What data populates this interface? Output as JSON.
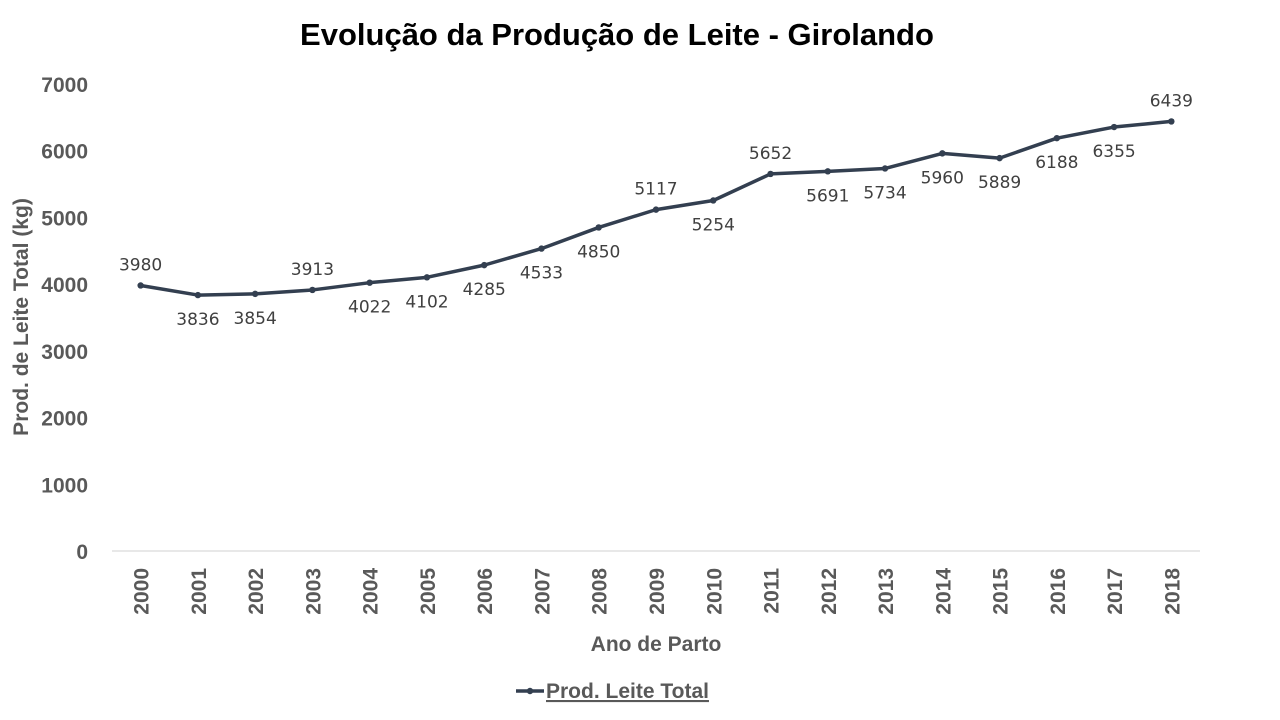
{
  "chart_data": {
    "type": "line",
    "title": "Evolução da Produção de Leite - Girolando",
    "xlabel": "Ano de Parto",
    "ylabel": "Prod. de Leite Total (kg)",
    "ylim": [
      0,
      7000
    ],
    "yticks": [
      "0",
      "1000",
      "2000",
      "3000",
      "4000",
      "5000",
      "6000",
      "7000"
    ],
    "categories": [
      "2000",
      "2001",
      "2002",
      "2003",
      "2004",
      "2005",
      "2006",
      "2007",
      "2008",
      "2009",
      "2010",
      "2011",
      "2012",
      "2013",
      "2014",
      "2015",
      "2016",
      "2017",
      "2018"
    ],
    "series": [
      {
        "name": "Prod. Leite Total",
        "color": "#333f50",
        "values": [
          3980,
          3836,
          3854,
          3913,
          4022,
          4102,
          4285,
          4533,
          4850,
          5117,
          5254,
          5652,
          5691,
          5734,
          5960,
          5889,
          6188,
          6355,
          6439
        ],
        "data_labels": [
          "3980",
          "3836",
          "3854",
          "3913",
          "4022",
          "4102",
          "4285",
          "4533",
          "4850",
          "5117",
          "5254",
          "5652",
          "5691",
          "5734",
          "5960",
          "5889",
          "6188",
          "6355",
          "6439"
        ]
      }
    ],
    "grid": false,
    "legend_position": "bottom"
  }
}
